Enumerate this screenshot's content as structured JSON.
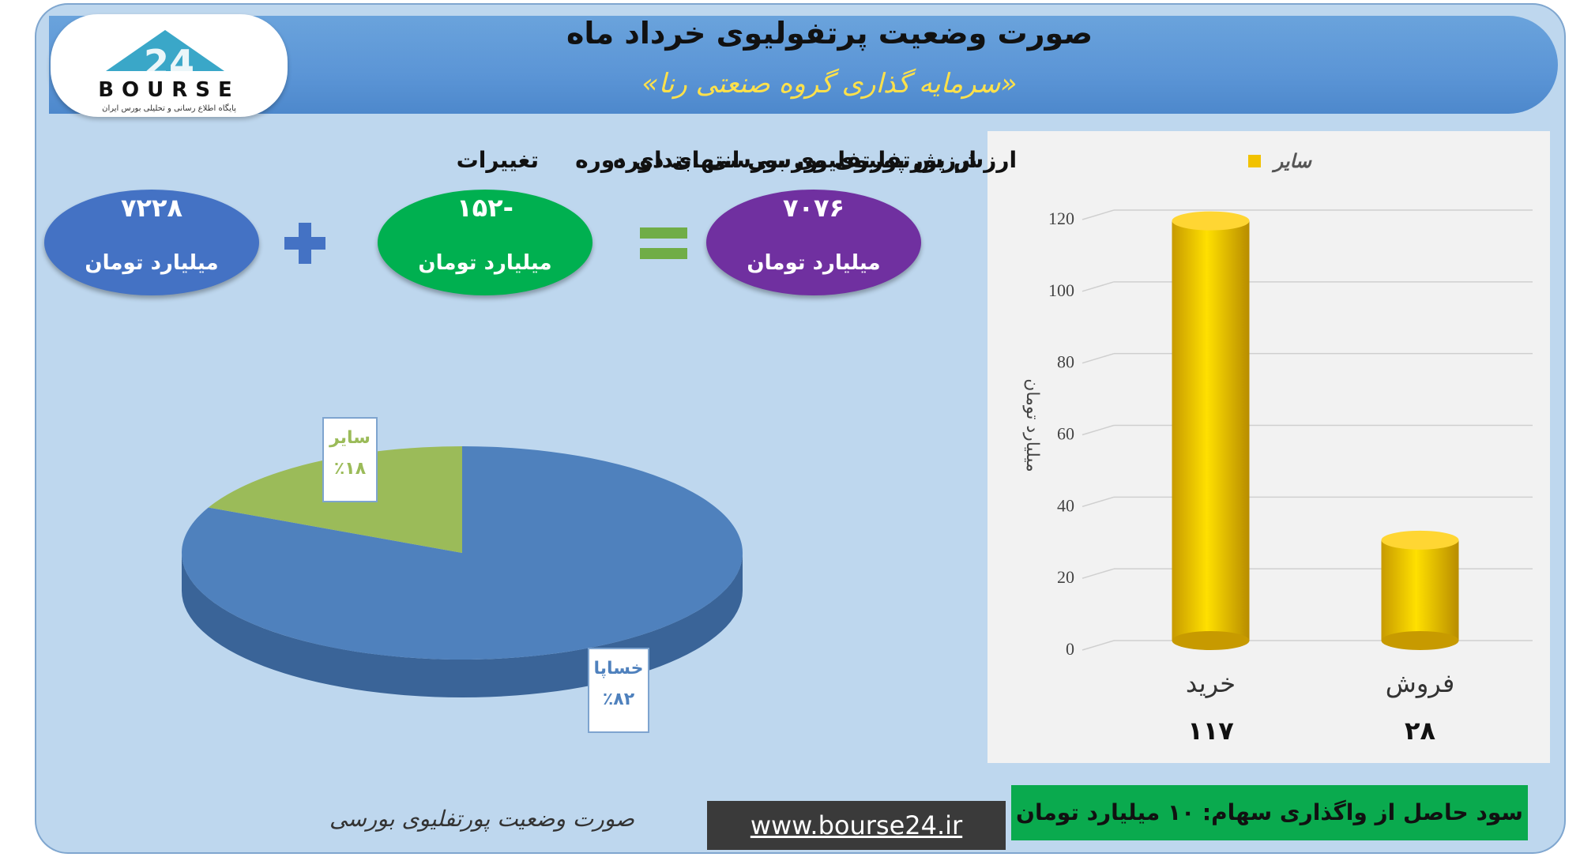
{
  "header": {
    "title": "صورت وضعیت پرتفولیوی خرداد ماه",
    "subtitle": "«سرمایه گذاری گروه صنعتی رنا»"
  },
  "logo": {
    "text": "BOURSE",
    "number": "24",
    "tagline": "پایگاه اطلاع رسانی و تحلیلی بورس ایران"
  },
  "summary": {
    "start": {
      "label": "ارزش پورتفلیوی بورسی ابتدای دوره",
      "value": "۷۲۲۸",
      "unit": "میلیارد تومان",
      "color": "#4472c4"
    },
    "change": {
      "label": "تغییرات",
      "value": "-۱۵۲",
      "unit": "میلیارد تومان",
      "color": "#00b050"
    },
    "end": {
      "label": "ارزش پورتفلیوی بورسی انتهای دوره",
      "value": "۷۰۷۶",
      "unit": "میلیارد تومان",
      "color": "#7030a0"
    }
  },
  "chart_data": [
    {
      "type": "pie",
      "labels": [
        "خساپا",
        "سایر"
      ],
      "values": [
        82,
        18
      ],
      "value_labels": [
        "٪۸۲",
        "٪۱۸"
      ],
      "colors": [
        "#4f81bd",
        "#9bbb59"
      ],
      "caption": "صورت وضعیت پورتفلیوی بورسی"
    },
    {
      "type": "bar",
      "categories": [
        "خرید",
        "فروش"
      ],
      "series": [
        {
          "name": "سایر",
          "values": [
            117,
            28
          ],
          "color": "#f2c200"
        }
      ],
      "value_labels": [
        "۱۱۷",
        "۲۸"
      ],
      "ylabel": "میلیارد تومان",
      "ylim": [
        0,
        120
      ],
      "yticks": [
        0,
        20,
        40,
        60,
        80,
        100,
        120
      ],
      "grid": true,
      "legend": "top"
    }
  ],
  "footer": {
    "profit": "سود حاصل از واگذاری سهام: ۱۰ میلیارد تومان",
    "url": "www.bourse24.ir"
  }
}
